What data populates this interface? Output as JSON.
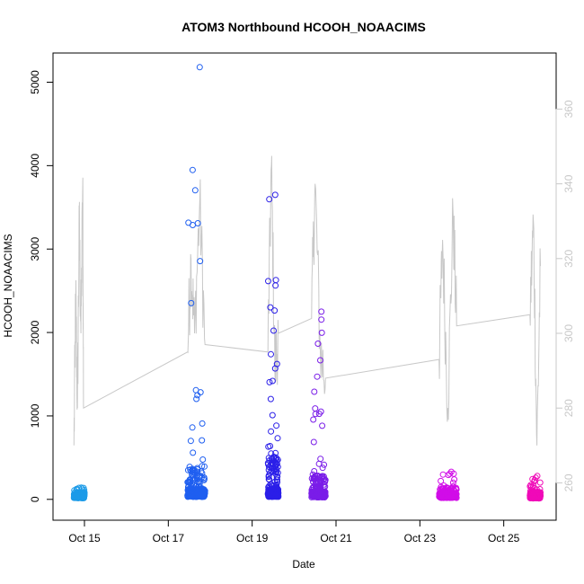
{
  "chart_data": {
    "type": "scatter",
    "title": "ATOM3 Northbound HCOOH_NOAACIMS",
    "xlabel": "Date",
    "ylabel": "HCOOH_NOAACIMS",
    "xlim": [
      "2016-10-14T06:00",
      "2016-10-26T06:00"
    ],
    "ylim": [
      -250,
      5350
    ],
    "y_ticks": [
      0,
      1000,
      2000,
      3000,
      4000,
      5000
    ],
    "x_ticks": [
      {
        "label": "Oct 15",
        "date": "2016-10-15"
      },
      {
        "label": "Oct 17",
        "date": "2016-10-17"
      },
      {
        "label": "Oct 19",
        "date": "2016-10-19"
      },
      {
        "label": "Oct 21",
        "date": "2016-10-21"
      },
      {
        "label": "Oct 23",
        "date": "2016-10-23"
      },
      {
        "label": "Oct 25",
        "date": "2016-10-25"
      }
    ],
    "y2lim": [
      250,
      375
    ],
    "y2_ticks": [
      260,
      280,
      300,
      320,
      340,
      360
    ],
    "grid": false,
    "flights": [
      {
        "start": "2016-10-14T18:00",
        "end": "2016-10-15T00:00",
        "base": 50,
        "spread": 40,
        "max": 140,
        "color": "#1c9be8"
      },
      {
        "start": "2016-10-17T11:00",
        "end": "2016-10-17T21:00",
        "base": 100,
        "spread": 300,
        "max": 5180,
        "color": "#1f5ff0"
      },
      {
        "start": "2016-10-19T09:00",
        "end": "2016-10-19T15:00",
        "base": 100,
        "spread": 400,
        "max": 3650,
        "color": "#2b1fe8"
      },
      {
        "start": "2016-10-20T10:00",
        "end": "2016-10-20T18:00",
        "base": 80,
        "spread": 200,
        "max": 2250,
        "color": "#7a1de8"
      },
      {
        "start": "2016-10-23T11:00",
        "end": "2016-10-23T21:00",
        "base": 60,
        "spread": 80,
        "max": 330,
        "color": "#d10de8"
      },
      {
        "start": "2016-10-25T15:00",
        "end": "2016-10-25T21:00",
        "base": 40,
        "spread": 50,
        "max": 280,
        "color": "#f00ab8"
      }
    ],
    "secondary_line": {
      "color": "#c8c8c8",
      "anchors": [
        [
          "2016-10-14T18:00",
          270
        ],
        [
          "2016-10-14T19:00",
          310
        ],
        [
          "2016-10-14T20:00",
          280
        ],
        [
          "2016-10-14T21:00",
          330
        ],
        [
          "2016-10-14T22:00",
          300
        ],
        [
          "2016-10-14T23:00",
          340
        ],
        [
          "2016-10-14T23:30",
          280
        ],
        [
          "2016-10-17T11:00",
          295
        ],
        [
          "2016-10-17T13:00",
          320
        ],
        [
          "2016-10-17T15:00",
          300
        ],
        [
          "2016-10-17T18:00",
          335
        ],
        [
          "2016-10-17T21:00",
          297
        ],
        [
          "2016-10-19T09:00",
          295
        ],
        [
          "2016-10-19T11:00",
          345
        ],
        [
          "2016-10-19T13:00",
          290
        ],
        [
          "2016-10-19T15:00",
          300
        ],
        [
          "2016-10-20T10:00",
          304
        ],
        [
          "2016-10-20T12:00",
          340
        ],
        [
          "2016-10-20T15:00",
          295
        ],
        [
          "2016-10-20T18:00",
          288
        ],
        [
          "2016-10-23T11:00",
          293
        ],
        [
          "2016-10-23T13:00",
          325
        ],
        [
          "2016-10-23T16:00",
          280
        ],
        [
          "2016-10-23T19:00",
          332
        ],
        [
          "2016-10-23T21:00",
          302
        ],
        [
          "2016-10-25T15:00",
          305
        ],
        [
          "2016-10-25T17:00",
          330
        ],
        [
          "2016-10-25T19:00",
          270
        ],
        [
          "2016-10-25T21:00",
          318
        ]
      ]
    }
  }
}
